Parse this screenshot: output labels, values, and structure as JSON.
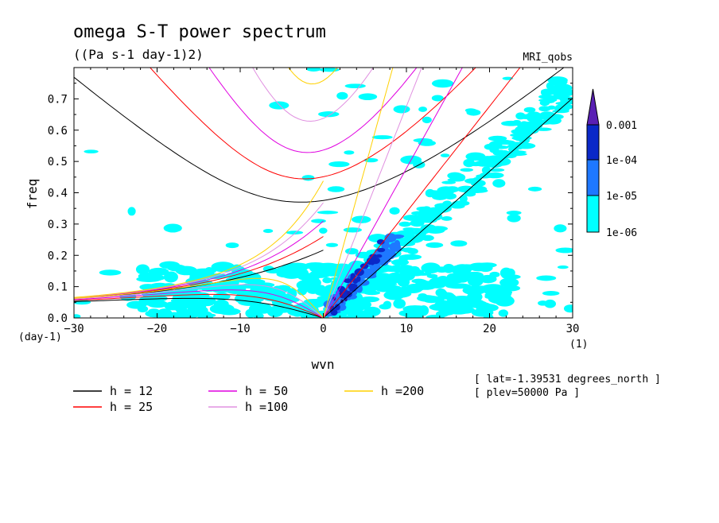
{
  "chart_data": {
    "type": "heatmap",
    "title": "omega S-T power spectrum",
    "subtitle": "((Pa s-1 day-1)2)",
    "source_label": "MRI_qobs",
    "xlabel": "wvn",
    "ylabel": "freq",
    "x_unit": "(1)",
    "y_unit": "(day-1)",
    "xlim": [
      -30,
      30
    ],
    "ylim": [
      0,
      0.8
    ],
    "x_ticks": [
      -30,
      -20,
      -10,
      0,
      10,
      20,
      30
    ],
    "y_ticks": [
      0.0,
      0.1,
      0.2,
      0.3,
      0.4,
      0.5,
      0.6,
      0.7
    ],
    "colorbar": {
      "levels": [
        "1e-06",
        "1e-05",
        "1e-04",
        "0.001"
      ],
      "colors": [
        "#00ffff",
        "#1e78ff",
        "#0a28c8",
        "#2a1a9e",
        "#5a20b4"
      ]
    },
    "dispersion_curves": [
      {
        "label": "h = 12",
        "h": 12,
        "color": "#000000"
      },
      {
        "label": "h = 25",
        "h": 25,
        "color": "#ff0000"
      },
      {
        "label": "h = 50",
        "h": 50,
        "color": "#e000e0"
      },
      {
        "label": "h =100",
        "h": 100,
        "color": "#e090e0"
      },
      {
        "label": "h =200",
        "h": 200,
        "color": "#ffd000"
      }
    ],
    "annotations": [
      "[ lat=-1.39531 degrees_north ]",
      "[ plev=50000 Pa ]"
    ]
  }
}
